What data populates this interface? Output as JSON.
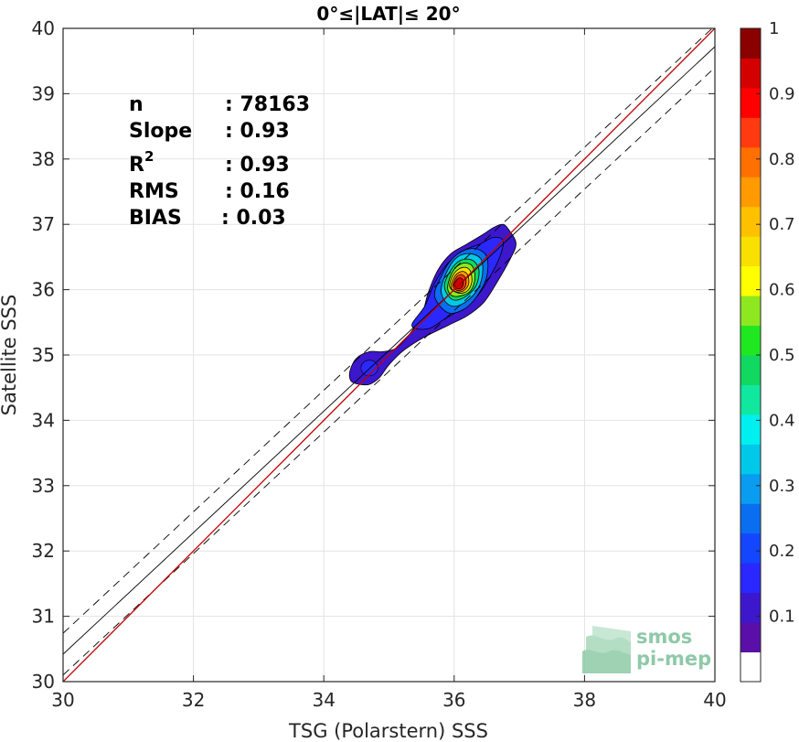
{
  "chart_data": {
    "type": "scatter",
    "title": "0°≤|LAT|≤ 20°",
    "xlabel": "TSG (Polarstern) SSS",
    "ylabel": "Satellite SSS",
    "xlim": [
      30,
      40
    ],
    "ylim": [
      30,
      40
    ],
    "xticks": [
      "30",
      "32",
      "34",
      "36",
      "38",
      "40"
    ],
    "yticks": [
      "30",
      "31",
      "32",
      "33",
      "34",
      "35",
      "36",
      "37",
      "38",
      "39",
      "40"
    ],
    "grid": true,
    "stats": [
      {
        "label": "n",
        "value": ": 78163"
      },
      {
        "label": "Slope",
        "value": ": 0.93"
      },
      {
        "label": "R",
        "sup": "2",
        "value": ": 0.93"
      },
      {
        "label": "RMS",
        "value": ": 0.16"
      },
      {
        "label": "BIAS",
        "value": ": 0.03"
      }
    ],
    "lines": {
      "identity": {
        "color": "#c00000",
        "x": [
          30,
          40
        ],
        "y": [
          30,
          40
        ]
      },
      "fit": {
        "color": "#000000",
        "x": [
          30,
          40
        ],
        "y": [
          30.42,
          39.72
        ]
      },
      "fit_plus": {
        "color": "#000000",
        "dash": true,
        "x": [
          30,
          40
        ],
        "y": [
          30.74,
          40.04
        ]
      },
      "fit_minus": {
        "color": "#000000",
        "dash": true,
        "x": [
          30,
          40
        ],
        "y": [
          30.1,
          39.4
        ]
      }
    },
    "density_contours": [
      {
        "level": 0.05,
        "color": "#3d17cc",
        "points": [
          [
            34.4,
            34.75
          ],
          [
            34.5,
            34.95
          ],
          [
            34.7,
            35.05
          ],
          [
            34.9,
            35.05
          ],
          [
            35.1,
            35.1
          ],
          [
            35.3,
            35.3
          ],
          [
            35.5,
            35.6
          ],
          [
            35.6,
            35.95
          ],
          [
            35.75,
            36.3
          ],
          [
            35.95,
            36.55
          ],
          [
            36.2,
            36.7
          ],
          [
            36.45,
            36.85
          ],
          [
            36.6,
            36.95
          ],
          [
            36.75,
            37.0
          ],
          [
            36.85,
            36.9
          ],
          [
            36.95,
            36.7
          ],
          [
            36.85,
            36.45
          ],
          [
            36.65,
            36.1
          ],
          [
            36.45,
            35.8
          ],
          [
            36.2,
            35.6
          ],
          [
            35.9,
            35.45
          ],
          [
            35.5,
            35.25
          ],
          [
            35.2,
            35.05
          ],
          [
            35.0,
            34.85
          ],
          [
            34.85,
            34.65
          ],
          [
            34.7,
            34.55
          ],
          [
            34.55,
            34.55
          ],
          [
            34.42,
            34.6
          ]
        ]
      },
      {
        "level": 0.15,
        "color": "#2a28ff",
        "points": [
          [
            35.35,
            35.45
          ],
          [
            35.55,
            35.75
          ],
          [
            35.7,
            36.1
          ],
          [
            35.9,
            36.4
          ],
          [
            36.15,
            36.6
          ],
          [
            36.4,
            36.7
          ],
          [
            36.6,
            36.8
          ],
          [
            36.75,
            36.75
          ],
          [
            36.7,
            36.5
          ],
          [
            36.55,
            36.2
          ],
          [
            36.35,
            35.9
          ],
          [
            36.1,
            35.7
          ],
          [
            35.85,
            35.55
          ],
          [
            35.6,
            35.4
          ]
        ]
      },
      {
        "level": 0.25,
        "color": "#0a6ef0",
        "points": [
          [
            35.7,
            35.9
          ],
          [
            35.8,
            36.2
          ],
          [
            35.95,
            36.45
          ],
          [
            36.15,
            36.6
          ],
          [
            36.35,
            36.62
          ],
          [
            36.5,
            36.5
          ],
          [
            36.5,
            36.2
          ],
          [
            36.35,
            35.9
          ],
          [
            36.15,
            35.7
          ],
          [
            35.9,
            35.65
          ]
        ]
      },
      {
        "level": 0.35,
        "color": "#00c8e8",
        "points": [
          [
            35.8,
            36.0
          ],
          [
            35.9,
            36.3
          ],
          [
            36.05,
            36.5
          ],
          [
            36.25,
            36.55
          ],
          [
            36.42,
            36.45
          ],
          [
            36.42,
            36.15
          ],
          [
            36.28,
            35.9
          ],
          [
            36.05,
            35.75
          ],
          [
            35.88,
            35.8
          ]
        ]
      },
      {
        "level": 0.45,
        "color": "#10d860",
        "points": [
          [
            35.85,
            36.05
          ],
          [
            35.95,
            36.3
          ],
          [
            36.1,
            36.45
          ],
          [
            36.28,
            36.45
          ],
          [
            36.38,
            36.3
          ],
          [
            36.33,
            36.05
          ],
          [
            36.15,
            35.88
          ],
          [
            35.97,
            35.85
          ]
        ]
      },
      {
        "level": 0.55,
        "color": "#8ee820",
        "points": [
          [
            35.9,
            36.05
          ],
          [
            35.98,
            36.28
          ],
          [
            36.12,
            36.4
          ],
          [
            36.27,
            36.37
          ],
          [
            36.32,
            36.18
          ],
          [
            36.25,
            35.98
          ],
          [
            36.08,
            35.9
          ],
          [
            35.95,
            35.92
          ]
        ]
      },
      {
        "level": 0.65,
        "color": "#f8e000",
        "points": [
          [
            35.93,
            36.05
          ],
          [
            36.0,
            36.25
          ],
          [
            36.13,
            36.34
          ],
          [
            36.24,
            36.3
          ],
          [
            36.27,
            36.12
          ],
          [
            36.2,
            35.98
          ],
          [
            36.06,
            35.95
          ]
        ]
      },
      {
        "level": 0.75,
        "color": "#ff9a00",
        "points": [
          [
            35.95,
            36.05
          ],
          [
            36.02,
            36.22
          ],
          [
            36.13,
            36.28
          ],
          [
            36.21,
            36.22
          ],
          [
            36.22,
            36.08
          ],
          [
            36.14,
            35.98
          ],
          [
            36.02,
            35.97
          ]
        ]
      },
      {
        "level": 0.85,
        "color": "#ff3a10",
        "points": [
          [
            35.98,
            36.07
          ],
          [
            36.04,
            36.2
          ],
          [
            36.12,
            36.23
          ],
          [
            36.18,
            36.16
          ],
          [
            36.17,
            36.05
          ],
          [
            36.1,
            35.99
          ],
          [
            36.02,
            36.0
          ]
        ]
      },
      {
        "level": 0.95,
        "color": "#d40000",
        "points": [
          [
            36.0,
            36.08
          ],
          [
            36.06,
            36.17
          ],
          [
            36.12,
            36.17
          ],
          [
            36.14,
            36.09
          ],
          [
            36.1,
            36.02
          ],
          [
            36.04,
            36.02
          ]
        ]
      }
    ],
    "secondary_blob": {
      "color": "#2a28ff",
      "center": [
        34.7,
        34.8
      ],
      "rx": 0.13,
      "ry": 0.12
    },
    "colorbar": {
      "range": [
        0,
        1
      ],
      "ticks": [
        "0.1",
        "0.2",
        "0.3",
        "0.4",
        "0.5",
        "0.6",
        "0.7",
        "0.8",
        "0.9",
        "1"
      ],
      "colors": [
        "#ffffff",
        "#5a0fa8",
        "#3d17cc",
        "#2a28ff",
        "#1446ff",
        "#0a6ef0",
        "#0a9cf0",
        "#00c8e8",
        "#00f0f0",
        "#10e8a0",
        "#10d860",
        "#20e820",
        "#8ee820",
        "#ffff00",
        "#f8e000",
        "#ffc000",
        "#ff9a00",
        "#ff7000",
        "#ff3a10",
        "#ff0000",
        "#d40000",
        "#8b0000"
      ]
    }
  },
  "logo": {
    "line1": "smos",
    "line2": "pi-mep"
  }
}
